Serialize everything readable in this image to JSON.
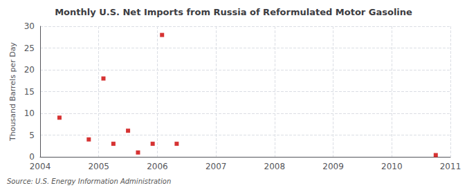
{
  "chart_data": {
    "type": "scatter",
    "title": "Monthly U.S. Net Imports from Russia of Reformulated Motor Gasoline",
    "ylabel": "Thousand Barrels per Day",
    "source": "Source: U.S. Energy Information Administration",
    "x": [
      2004.33,
      2004.83,
      2005.08,
      2005.25,
      2005.5,
      2005.67,
      2005.92,
      2006.08,
      2006.33,
      2010.75
    ],
    "values": [
      9,
      4,
      18,
      3,
      6,
      1,
      3,
      28,
      3,
      0.4
    ],
    "color": "#cc0000",
    "marker": "square",
    "xlim": [
      2004,
      2011
    ],
    "xticks": [
      2004,
      2005,
      2006,
      2007,
      2008,
      2009,
      2010,
      2011
    ],
    "ylim": [
      0,
      30
    ],
    "yticks": [
      0,
      5,
      10,
      15,
      20,
      25,
      30
    ],
    "grid": true
  }
}
